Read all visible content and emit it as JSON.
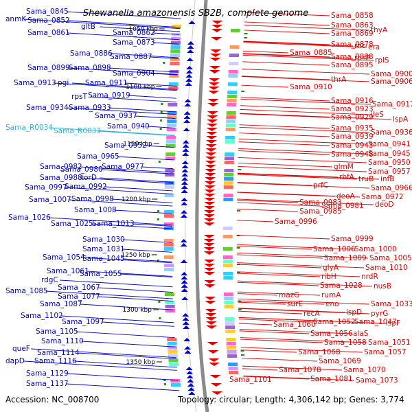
{
  "title": "Shewanella amazonensis SB2B, complete genome",
  "footer": {
    "accession": "Accession: NC_008700",
    "topology": "Topology: circular; Length: 4,306,142 bp; Genes: 3,774"
  },
  "colors": {
    "left_genes": "#0000cc",
    "right_genes": "#e00000",
    "rna_genes": "#2ab0e0",
    "backbone": "#888888",
    "tick_label": "#000000"
  },
  "ticks": [
    "1050 kbp",
    "1100 kbp",
    "1150 kbp",
    "1200 kbp",
    "1250 kbp",
    "1300 kbp",
    "1350 kbp"
  ],
  "left_labels": [
    {
      "text": "Sama_0845",
      "kind": "gene"
    },
    {
      "text": "anmK",
      "kind": "gene"
    },
    {
      "text": "Sama_0852",
      "kind": "gene"
    },
    {
      "text": "gltB",
      "kind": "gene"
    },
    {
      "text": "Sama_0861",
      "kind": "gene"
    },
    {
      "text": "Sama_0862",
      "kind": "gene"
    },
    {
      "text": "Sama_0873",
      "kind": "gene"
    },
    {
      "text": "Sama_0886",
      "kind": "gene"
    },
    {
      "text": "Sama_0887",
      "kind": "gene"
    },
    {
      "text": "Sama_0899",
      "kind": "gene"
    },
    {
      "text": "Sama_0898",
      "kind": "gene"
    },
    {
      "text": "Sama_0904",
      "kind": "gene"
    },
    {
      "text": "Sama_0913",
      "kind": "gene"
    },
    {
      "text": "pgi",
      "kind": "gene"
    },
    {
      "text": "Sama_0911",
      "kind": "gene"
    },
    {
      "text": "rpsT",
      "kind": "gene"
    },
    {
      "text": "Sama_0919",
      "kind": "gene"
    },
    {
      "text": "Sama_0934",
      "kind": "gene"
    },
    {
      "text": "Sama_0933",
      "kind": "gene"
    },
    {
      "text": "Sama_0937",
      "kind": "gene"
    },
    {
      "text": "Sama_0940",
      "kind": "gene"
    },
    {
      "text": "Sama_R0034",
      "kind": "rna"
    },
    {
      "text": "Sama_R0033",
      "kind": "rna"
    },
    {
      "text": "Sama_0952",
      "kind": "gene"
    },
    {
      "text": "Sama_0965",
      "kind": "gene"
    },
    {
      "text": "Sama_0982",
      "kind": "gene"
    },
    {
      "text": "Sama_0980",
      "kind": "gene"
    },
    {
      "text": "Sama_0977",
      "kind": "gene"
    },
    {
      "text": "Sama_0988",
      "kind": "gene"
    },
    {
      "text": "torD",
      "kind": "gene"
    },
    {
      "text": "Sama_0997",
      "kind": "gene"
    },
    {
      "text": "Sama_0992",
      "kind": "gene"
    },
    {
      "text": "Sama_1007",
      "kind": "gene"
    },
    {
      "text": "Sama_0998",
      "kind": "gene"
    },
    {
      "text": "Sama_1008",
      "kind": "gene"
    },
    {
      "text": "Sama_1026",
      "kind": "gene"
    },
    {
      "text": "Sama_1025",
      "kind": "gene"
    },
    {
      "text": "Sama_1013",
      "kind": "gene"
    },
    {
      "text": "Sama_1030",
      "kind": "gene"
    },
    {
      "text": "Sama_1031",
      "kind": "gene"
    },
    {
      "text": "Sama_1054",
      "kind": "gene"
    },
    {
      "text": "Sama_1045",
      "kind": "gene"
    },
    {
      "text": "Sama_1061",
      "kind": "gene"
    },
    {
      "text": "Sama_1055",
      "kind": "gene"
    },
    {
      "text": "rdgC",
      "kind": "gene"
    },
    {
      "text": "Sama_1067",
      "kind": "gene"
    },
    {
      "text": "Sama_1085",
      "kind": "gene"
    },
    {
      "text": "Sama_1077",
      "kind": "gene"
    },
    {
      "text": "Sama_1087",
      "kind": "gene"
    },
    {
      "text": "Sama_1102",
      "kind": "gene"
    },
    {
      "text": "Sama_1097",
      "kind": "gene"
    },
    {
      "text": "Sama_1105",
      "kind": "gene"
    },
    {
      "text": "Sama_1110",
      "kind": "gene"
    },
    {
      "text": "queF",
      "kind": "gene"
    },
    {
      "text": "Sama_1114",
      "kind": "gene"
    },
    {
      "text": "dapD",
      "kind": "gene"
    },
    {
      "text": "Sama_1116",
      "kind": "gene"
    },
    {
      "text": "Sama_1129",
      "kind": "gene"
    },
    {
      "text": "Sama_1137",
      "kind": "gene"
    }
  ],
  "right_labels": [
    "Sama_0858",
    "Sama_0863",
    "Sama_0869",
    "thyA",
    "Sama_0878",
    "rnc",
    "era",
    "Sama_0885",
    "Sama_0888",
    "rpsP",
    "rplS",
    "Sama_0895",
    "Sama_0900",
    "thrA",
    "Sama_0906",
    "Sama_0910",
    "Sama_0916",
    "Sama_0917",
    "Sama_0923",
    "ileS",
    "Sama_0929",
    "lspA",
    "Sama_0935",
    "Sama_0936",
    "Sama_0939",
    "Sama_0943",
    "Sama_0941",
    "Sama_0948",
    "Sama_0945",
    "Sama_0950",
    "glmM",
    "Sama_0957",
    "rbfA",
    "truB",
    "infB",
    "prfC",
    "Sama_0966",
    "deoA",
    "Sama_0972",
    "Sama_0983",
    "Sama_0981",
    "deoD",
    "Sama_0985",
    "Sama_0996",
    "Sama_0999",
    "Sama_1006",
    "Sama_1000",
    "Sama_1009",
    "Sama_1005",
    "glyA",
    "Sama_1010",
    "ribH",
    "nrdR",
    "Sama_1028",
    "nusB",
    "mazG",
    "rumA",
    "surE",
    "eno",
    "Sama_1033",
    "recA",
    "ispD",
    "pyrG",
    "Sama_1052",
    "Sama_1047",
    "ispF",
    "Sama_1060",
    "Sama_1056",
    "alaS",
    "Sama_1058",
    "Sama_1051",
    "Sama_1068",
    "Sama_1057",
    "Sama_1069",
    "Sama_1078",
    "Sama_1070",
    "Sama_1081",
    "Sama_1073",
    "Sama_1101"
  ]
}
